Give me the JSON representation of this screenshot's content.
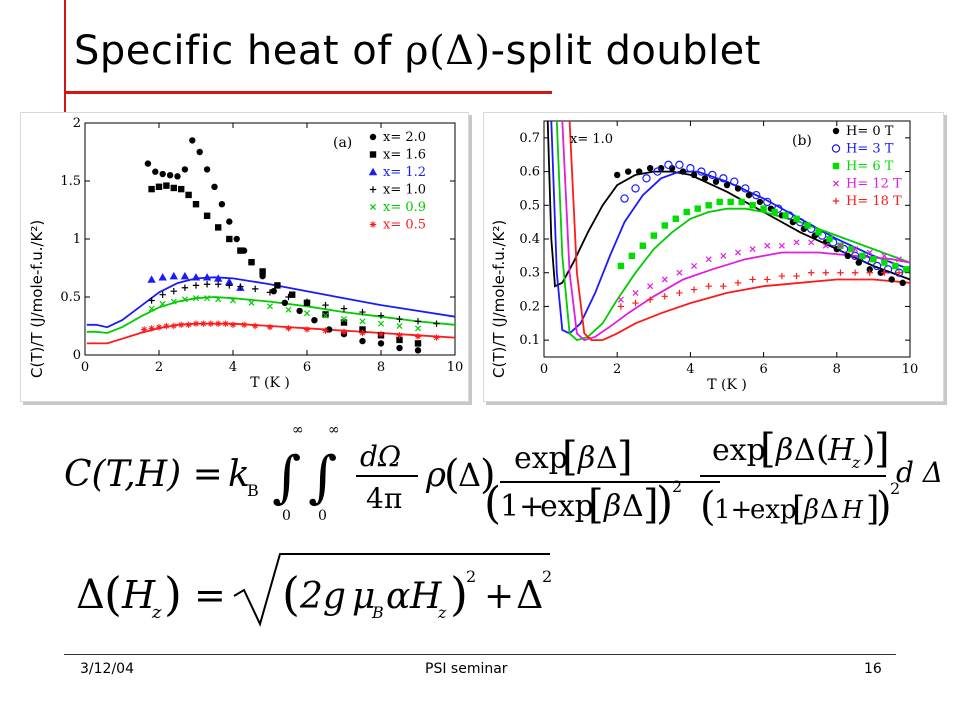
{
  "slide": {
    "title_pre": "Specific heat of ",
    "title_sym1": "ρ",
    "title_sym2": "(Δ)",
    "title_post": "-split doublet",
    "accent_color": "#d41515"
  },
  "ylabel_overlay": "C(T)/T (J/mole-f.u./K²)",
  "chart_data": [
    {
      "type": "scatter",
      "panel_label": "(a)",
      "xlabel": "T (K )",
      "xlim": [
        0,
        10
      ],
      "ylim": [
        0,
        2
      ],
      "xticks": [
        "0",
        "2",
        "4",
        "6",
        "8",
        "10"
      ],
      "yticks": [
        "0",
        "0.5",
        "1",
        "1.5",
        "2"
      ],
      "legend_position": "top-right",
      "series": [
        {
          "name": "x= 2.0",
          "color": "#000000",
          "marker": "circle",
          "x": [
            1.7,
            1.9,
            2.1,
            2.3,
            2.5,
            2.7,
            2.9,
            3.1,
            3.3,
            3.5,
            3.7,
            3.9,
            4.1,
            4.3,
            4.5,
            4.8,
            5.1,
            5.4,
            5.8,
            6.2,
            6.6,
            7.0,
            7.5,
            8.0,
            8.5,
            9.0
          ],
          "y": [
            1.65,
            1.58,
            1.56,
            1.55,
            1.54,
            1.6,
            1.85,
            1.75,
            1.6,
            1.45,
            1.3,
            1.15,
            1.0,
            0.9,
            0.8,
            0.68,
            0.55,
            0.45,
            0.38,
            0.3,
            0.22,
            0.18,
            0.12,
            0.1,
            0.06,
            0.04
          ]
        },
        {
          "name": "x= 1.6",
          "color": "#000000",
          "marker": "square",
          "x": [
            1.8,
            2.0,
            2.2,
            2.4,
            2.6,
            2.8,
            3.0,
            3.3,
            3.6,
            3.9,
            4.2,
            4.5,
            4.8,
            5.2,
            5.6,
            6.0,
            6.5,
            7.0,
            7.5,
            8.0,
            8.5,
            9.0
          ],
          "y": [
            1.43,
            1.45,
            1.46,
            1.44,
            1.43,
            1.38,
            1.3,
            1.2,
            1.1,
            1.0,
            0.9,
            0.8,
            0.72,
            0.6,
            0.52,
            0.45,
            0.35,
            0.28,
            0.22,
            0.17,
            0.13,
            0.1
          ]
        },
        {
          "name": "x= 1.2",
          "color": "#1a1aff",
          "marker": "triangle",
          "x": [
            1.8,
            2.1,
            2.4,
            2.7,
            3.0,
            3.3,
            3.6,
            3.9,
            4.2
          ],
          "y": [
            0.65,
            0.67,
            0.68,
            0.68,
            0.67,
            0.67,
            0.66,
            0.63,
            0.58
          ]
        },
        {
          "name": "x= 1.0",
          "color": "#000000",
          "marker": "plus",
          "x": [
            1.8,
            2.1,
            2.4,
            2.7,
            3.0,
            3.3,
            3.6,
            3.9,
            4.2,
            4.6,
            5.0,
            5.5,
            6.0,
            6.5,
            7.0,
            7.5,
            8.0,
            8.5,
            9.0,
            9.5
          ],
          "y": [
            0.47,
            0.52,
            0.55,
            0.58,
            0.6,
            0.61,
            0.61,
            0.6,
            0.59,
            0.57,
            0.54,
            0.5,
            0.46,
            0.43,
            0.4,
            0.37,
            0.34,
            0.31,
            0.29,
            0.27
          ]
        },
        {
          "name": "x= 0.9",
          "color": "#00cc00",
          "marker": "cross",
          "x": [
            1.8,
            2.1,
            2.4,
            2.7,
            3.0,
            3.3,
            3.6,
            4.0,
            4.5,
            5.0,
            5.5,
            6.0,
            6.5,
            7.0,
            7.5,
            8.0,
            8.5,
            9.0
          ],
          "y": [
            0.4,
            0.44,
            0.46,
            0.48,
            0.49,
            0.49,
            0.48,
            0.47,
            0.45,
            0.42,
            0.39,
            0.36,
            0.34,
            0.31,
            0.29,
            0.27,
            0.25,
            0.23
          ]
        },
        {
          "name": "x= 0.5",
          "color": "#ff1a1a",
          "marker": "star",
          "x": [
            1.6,
            1.8,
            2.0,
            2.2,
            2.4,
            2.6,
            2.8,
            3.0,
            3.2,
            3.4,
            3.6,
            3.8,
            4.0,
            4.3,
            4.6,
            5.0,
            5.5,
            6.0,
            6.5,
            7.0,
            7.5,
            8.0,
            8.5,
            9.0,
            9.5
          ],
          "y": [
            0.22,
            0.23,
            0.24,
            0.25,
            0.25,
            0.26,
            0.26,
            0.27,
            0.27,
            0.27,
            0.27,
            0.27,
            0.26,
            0.26,
            0.25,
            0.24,
            0.23,
            0.22,
            0.21,
            0.2,
            0.19,
            0.18,
            0.17,
            0.16,
            0.15
          ]
        }
      ],
      "fits": [
        {
          "color": "#1a1aff",
          "x": [
            0.05,
            0.3,
            0.6,
            1.0,
            1.5,
            2.0,
            2.5,
            3.0,
            3.5,
            4.0,
            5.0,
            6.0,
            7.0,
            8.0,
            9.0,
            10.0
          ],
          "y": [
            0.26,
            0.26,
            0.24,
            0.3,
            0.42,
            0.54,
            0.62,
            0.66,
            0.67,
            0.66,
            0.61,
            0.55,
            0.49,
            0.43,
            0.38,
            0.33
          ]
        },
        {
          "color": "#00cc00",
          "x": [
            0.05,
            0.3,
            0.6,
            1.0,
            1.5,
            2.0,
            2.5,
            3.0,
            3.5,
            4.0,
            5.0,
            6.0,
            7.0,
            8.0,
            9.0,
            10.0
          ],
          "y": [
            0.2,
            0.2,
            0.19,
            0.24,
            0.33,
            0.41,
            0.46,
            0.49,
            0.5,
            0.49,
            0.46,
            0.42,
            0.37,
            0.33,
            0.29,
            0.26
          ]
        },
        {
          "color": "#ff1a1a",
          "x": [
            0.05,
            0.3,
            0.6,
            1.0,
            1.5,
            2.0,
            2.5,
            3.0,
            3.5,
            4.0,
            5.0,
            6.0,
            7.0,
            8.0,
            9.0,
            10.0
          ],
          "y": [
            0.1,
            0.1,
            0.1,
            0.14,
            0.19,
            0.23,
            0.26,
            0.27,
            0.27,
            0.27,
            0.25,
            0.23,
            0.21,
            0.19,
            0.17,
            0.15
          ]
        }
      ]
    },
    {
      "type": "scatter",
      "panel_label": "(b)",
      "annotation": "x= 1.0",
      "xlabel": "T (K )",
      "xlim": [
        0,
        10
      ],
      "ylim": [
        0.05,
        0.75
      ],
      "xticks": [
        "0",
        "2",
        "4",
        "6",
        "8",
        "10"
      ],
      "yticks": [
        "0.1",
        "0.2",
        "0.3",
        "0.4",
        "0.5",
        "0.6",
        "0.7"
      ],
      "legend_position": "top-right",
      "series": [
        {
          "name": "H=   0 T",
          "color": "#000000",
          "marker": "circle",
          "x": [
            2.0,
            2.3,
            2.6,
            2.9,
            3.2,
            3.5,
            3.8,
            4.1,
            4.4,
            4.7,
            5.0,
            5.3,
            5.6,
            5.9,
            6.2,
            6.5,
            6.8,
            7.1,
            7.4,
            7.7,
            8.0,
            8.3,
            8.6,
            8.9,
            9.2,
            9.5,
            9.8
          ],
          "y": [
            0.59,
            0.6,
            0.6,
            0.61,
            0.61,
            0.61,
            0.6,
            0.59,
            0.58,
            0.57,
            0.56,
            0.55,
            0.53,
            0.51,
            0.49,
            0.47,
            0.45,
            0.43,
            0.41,
            0.39,
            0.37,
            0.35,
            0.33,
            0.31,
            0.3,
            0.28,
            0.27
          ]
        },
        {
          "name": "H=   3 T",
          "color": "#1a1aff",
          "marker": "open-circle",
          "x": [
            2.2,
            2.5,
            2.8,
            3.1,
            3.4,
            3.7,
            4.0,
            4.3,
            4.6,
            4.9,
            5.2,
            5.5,
            5.8,
            6.1,
            6.4,
            6.7,
            7.0,
            7.3,
            7.6,
            7.9,
            8.2,
            8.5,
            8.8,
            9.1,
            9.4,
            9.7
          ],
          "y": [
            0.52,
            0.55,
            0.58,
            0.6,
            0.62,
            0.62,
            0.61,
            0.6,
            0.59,
            0.58,
            0.57,
            0.55,
            0.53,
            0.51,
            0.49,
            0.47,
            0.45,
            0.43,
            0.41,
            0.39,
            0.37,
            0.35,
            0.34,
            0.32,
            0.31,
            0.3
          ]
        },
        {
          "name": "H=   6 T",
          "color": "#00dd00",
          "marker": "square",
          "x": [
            2.1,
            2.4,
            2.7,
            3.0,
            3.3,
            3.6,
            3.9,
            4.2,
            4.5,
            4.8,
            5.1,
            5.4,
            5.7,
            6.0,
            6.3,
            6.6,
            6.9,
            7.2,
            7.5,
            7.8,
            8.1,
            8.4,
            8.7,
            9.0,
            9.3,
            9.6,
            9.9
          ],
          "y": [
            0.32,
            0.35,
            0.38,
            0.41,
            0.44,
            0.46,
            0.48,
            0.49,
            0.5,
            0.51,
            0.51,
            0.51,
            0.5,
            0.49,
            0.48,
            0.47,
            0.46,
            0.44,
            0.42,
            0.4,
            0.38,
            0.37,
            0.35,
            0.34,
            0.33,
            0.32,
            0.31
          ]
        },
        {
          "name": "H= 12 T",
          "color": "#e01ee0",
          "marker": "cross",
          "x": [
            2.1,
            2.5,
            2.9,
            3.3,
            3.7,
            4.1,
            4.5,
            4.9,
            5.3,
            5.7,
            6.1,
            6.5,
            6.9,
            7.3,
            7.7,
            8.1,
            8.5,
            8.9,
            9.3,
            9.7
          ],
          "y": [
            0.22,
            0.24,
            0.26,
            0.28,
            0.3,
            0.32,
            0.34,
            0.35,
            0.36,
            0.37,
            0.38,
            0.38,
            0.39,
            0.39,
            0.38,
            0.38,
            0.37,
            0.36,
            0.35,
            0.34
          ]
        },
        {
          "name": "H= 18 T",
          "color": "#ff1a1a",
          "marker": "plus",
          "x": [
            2.1,
            2.5,
            2.9,
            3.3,
            3.7,
            4.1,
            4.5,
            4.9,
            5.3,
            5.7,
            6.1,
            6.5,
            6.9,
            7.3,
            7.7,
            8.1,
            8.5,
            8.9,
            9.3,
            9.7
          ],
          "y": [
            0.2,
            0.21,
            0.22,
            0.23,
            0.24,
            0.25,
            0.26,
            0.26,
            0.27,
            0.28,
            0.28,
            0.29,
            0.29,
            0.3,
            0.3,
            0.3,
            0.3,
            0.3,
            0.3,
            0.3
          ]
        }
      ],
      "fits": [
        {
          "color": "#000000",
          "x": [
            0.1,
            0.2,
            0.3,
            0.5,
            0.8,
            1.2,
            1.6,
            2.0,
            2.5,
            3.0,
            3.5,
            4.0,
            5.0,
            6.0,
            7.0,
            8.0,
            9.0,
            10.0
          ],
          "y": [
            0.75,
            0.4,
            0.26,
            0.27,
            0.33,
            0.42,
            0.5,
            0.56,
            0.59,
            0.6,
            0.6,
            0.59,
            0.54,
            0.48,
            0.42,
            0.37,
            0.32,
            0.28
          ]
        },
        {
          "color": "#1a1aff",
          "x": [
            0.2,
            0.35,
            0.5,
            0.7,
            1.0,
            1.4,
            1.8,
            2.2,
            2.7,
            3.2,
            3.7,
            4.2,
            5.0,
            6.0,
            7.0,
            8.0,
            9.0,
            10.0
          ],
          "y": [
            0.75,
            0.3,
            0.13,
            0.12,
            0.15,
            0.24,
            0.35,
            0.45,
            0.53,
            0.58,
            0.6,
            0.6,
            0.57,
            0.52,
            0.46,
            0.4,
            0.35,
            0.31
          ]
        },
        {
          "color": "#00cc00",
          "x": [
            0.35,
            0.5,
            0.7,
            0.9,
            1.2,
            1.6,
            2.0,
            2.5,
            3.0,
            3.5,
            4.0,
            4.5,
            5.0,
            5.5,
            6.0,
            7.0,
            8.0,
            9.0,
            10.0
          ],
          "y": [
            0.75,
            0.35,
            0.12,
            0.1,
            0.11,
            0.15,
            0.22,
            0.3,
            0.37,
            0.42,
            0.46,
            0.48,
            0.49,
            0.49,
            0.48,
            0.45,
            0.41,
            0.37,
            0.33
          ]
        },
        {
          "color": "#e01ee0",
          "x": [
            0.5,
            0.7,
            0.9,
            1.1,
            1.4,
            1.8,
            2.3,
            3.0,
            3.8,
            4.6,
            5.5,
            6.5,
            7.5,
            8.5,
            9.5,
            10.0
          ],
          "y": [
            0.75,
            0.3,
            0.12,
            0.1,
            0.11,
            0.14,
            0.18,
            0.23,
            0.28,
            0.31,
            0.34,
            0.36,
            0.36,
            0.35,
            0.34,
            0.33
          ]
        },
        {
          "color": "#ff1a1a",
          "x": [
            0.7,
            0.9,
            1.1,
            1.3,
            1.6,
            2.0,
            2.5,
            3.2,
            4.0,
            5.0,
            6.0,
            7.0,
            8.0,
            9.0,
            10.0
          ],
          "y": [
            0.75,
            0.3,
            0.12,
            0.1,
            0.1,
            0.12,
            0.15,
            0.18,
            0.21,
            0.24,
            0.26,
            0.27,
            0.28,
            0.28,
            0.27
          ]
        }
      ]
    }
  ],
  "formula1": {
    "lhs": "C(T,H) =",
    "kB": "k",
    "kB_sub": "B",
    "int_upper": "∞",
    "int_lower": "0",
    "dOmega": "dΩ",
    "four_pi": "4π",
    "rho": "ρ",
    "delta": "Δ",
    "beta": "β",
    "H": "H",
    "z": "z",
    "exp": "exp",
    "one_plus": "1+",
    "sq": "2",
    "d_delta": "d Δ"
  },
  "formula2": {
    "lhs_delta": "Δ",
    "H": "H",
    "z": "z",
    "eq": "=",
    "two_g": "2g",
    "mu": "μ",
    "mu_sub": "B",
    "alpha": "α",
    "plus": "+",
    "delta": "Δ",
    "sq": "2"
  },
  "footer": {
    "date": "3/12/04",
    "center": "PSI seminar",
    "page": "16"
  }
}
